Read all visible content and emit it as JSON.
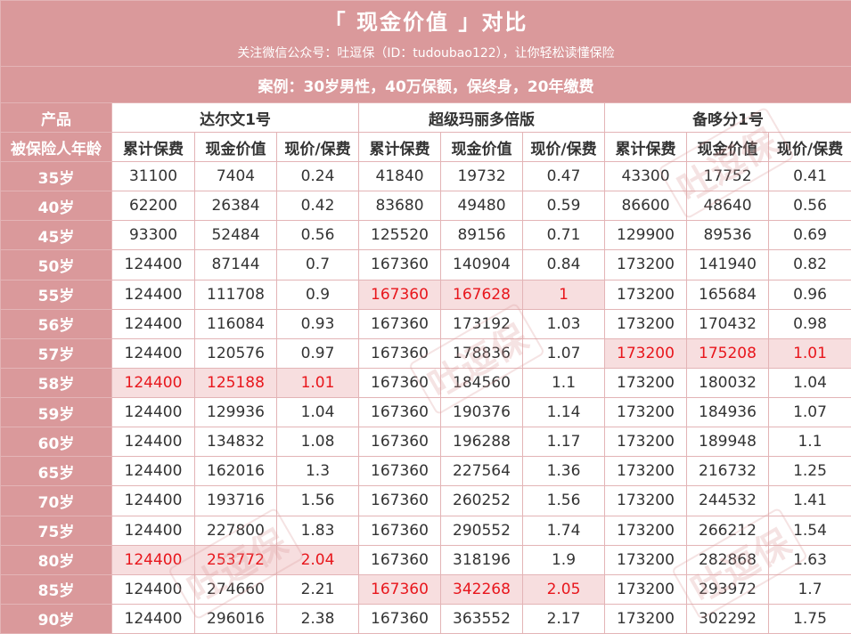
{
  "title": "「 现金价值 」对比",
  "subtitle": "关注微信公众号：吐逗保（ID：tudoubao122），让你轻松读懂保险",
  "case_text": "案例：30岁男性，40万保额，保终身，20年缴费",
  "header": {
    "product_label": "产品",
    "insured_age_label": "被保险人年龄",
    "products": [
      "达尔文1号",
      "超级玛丽多倍版",
      "备哆分1号"
    ],
    "columns": [
      "累计保费",
      "现金价值",
      "现价/保费"
    ]
  },
  "watermark_text": "吐逗保",
  "colors": {
    "header_bg": "#da999b",
    "highlight_bg": "#f7dedf",
    "highlight_text": "#e8161c"
  },
  "rows": [
    {
      "age": "35岁",
      "cells": [
        "31100",
        "7404",
        "0.24",
        "41840",
        "19732",
        "0.47",
        "43300",
        "17752",
        "0.41"
      ],
      "hl": []
    },
    {
      "age": "40岁",
      "cells": [
        "62200",
        "26384",
        "0.42",
        "83680",
        "49480",
        "0.59",
        "86600",
        "48640",
        "0.56"
      ],
      "hl": []
    },
    {
      "age": "45岁",
      "cells": [
        "93300",
        "52484",
        "0.56",
        "125520",
        "89156",
        "0.71",
        "129900",
        "89536",
        "0.69"
      ],
      "hl": []
    },
    {
      "age": "50岁",
      "cells": [
        "124400",
        "87144",
        "0.7",
        "167360",
        "140904",
        "0.84",
        "173200",
        "141940",
        "0.82"
      ],
      "hl": []
    },
    {
      "age": "55岁",
      "cells": [
        "124400",
        "111708",
        "0.9",
        "167360",
        "167628",
        "1",
        "173200",
        "165684",
        "0.96"
      ],
      "hl": [
        1
      ]
    },
    {
      "age": "56岁",
      "cells": [
        "124400",
        "116084",
        "0.93",
        "167360",
        "173192",
        "1.03",
        "173200",
        "170432",
        "0.98"
      ],
      "hl": []
    },
    {
      "age": "57岁",
      "cells": [
        "124400",
        "120576",
        "0.97",
        "167360",
        "178836",
        "1.07",
        "173200",
        "175208",
        "1.01"
      ],
      "hl": [
        2
      ]
    },
    {
      "age": "58岁",
      "cells": [
        "124400",
        "125188",
        "1.01",
        "167360",
        "184560",
        "1.1",
        "173200",
        "180032",
        "1.04"
      ],
      "hl": [
        0
      ]
    },
    {
      "age": "59岁",
      "cells": [
        "124400",
        "129936",
        "1.04",
        "167360",
        "190376",
        "1.14",
        "173200",
        "184936",
        "1.07"
      ],
      "hl": []
    },
    {
      "age": "60岁",
      "cells": [
        "124400",
        "134832",
        "1.08",
        "167360",
        "196288",
        "1.17",
        "173200",
        "189948",
        "1.1"
      ],
      "hl": []
    },
    {
      "age": "65岁",
      "cells": [
        "124400",
        "162016",
        "1.3",
        "167360",
        "227564",
        "1.36",
        "173200",
        "216732",
        "1.25"
      ],
      "hl": []
    },
    {
      "age": "70岁",
      "cells": [
        "124400",
        "193716",
        "1.56",
        "167360",
        "260252",
        "1.56",
        "173200",
        "244532",
        "1.41"
      ],
      "hl": []
    },
    {
      "age": "75岁",
      "cells": [
        "124400",
        "227800",
        "1.83",
        "167360",
        "290552",
        "1.74",
        "173200",
        "266212",
        "1.54"
      ],
      "hl": []
    },
    {
      "age": "80岁",
      "cells": [
        "124400",
        "253772",
        "2.04",
        "167360",
        "318196",
        "1.9",
        "173200",
        "282868",
        "1.63"
      ],
      "hl": [
        0
      ]
    },
    {
      "age": "85岁",
      "cells": [
        "124400",
        "274660",
        "2.21",
        "167360",
        "342268",
        "2.05",
        "173200",
        "293972",
        "1.7"
      ],
      "hl": [
        1
      ]
    },
    {
      "age": "90岁",
      "cells": [
        "124400",
        "296016",
        "2.38",
        "167360",
        "363552",
        "2.17",
        "173200",
        "302292",
        "1.75"
      ],
      "hl": []
    }
  ]
}
